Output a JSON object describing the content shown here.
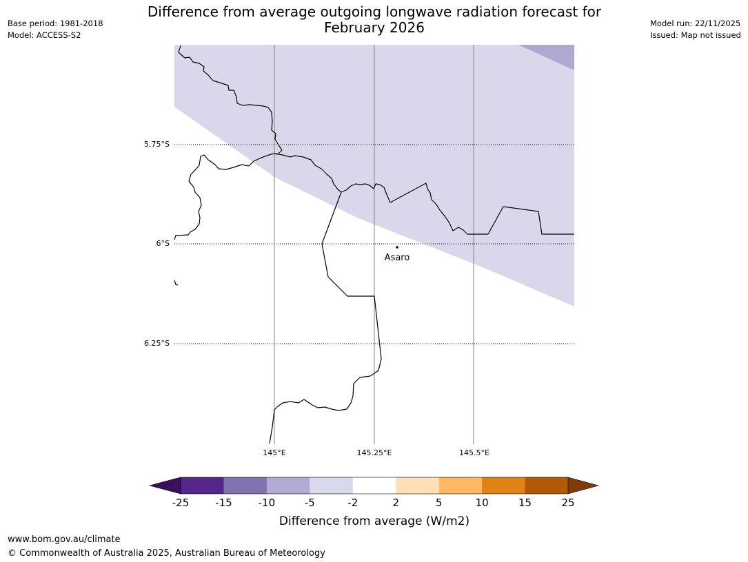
{
  "header": {
    "title_line1": "Difference from average outgoing longwave radiation forecast for",
    "title_line2": "February 2026",
    "base_period": "Base period: 1981-2018",
    "model": "Model: ACCESS-S2",
    "model_run": "Model run: 22/11/2025",
    "issued": "Issued: Map not issued"
  },
  "map": {
    "lat_labels": [
      "5.75°S",
      "6°S",
      "6.25°S"
    ],
    "lon_labels": [
      "145°E",
      "145.25°E",
      "145.5°E"
    ],
    "place_label": "Asaro",
    "colors": {
      "band_light": "#d8d8ea",
      "band_mid": "#b1a8d2",
      "coastline": "#000000",
      "gridline": "#808080"
    }
  },
  "colorbar": {
    "title": "Difference from average (W/m2)",
    "tick_labels": [
      "-25",
      "-15",
      "-10",
      "-5",
      "-2",
      "2",
      "5",
      "10",
      "15",
      "25"
    ],
    "low_extend_color": "#3b0f5c",
    "high_extend_color": "#7f3b08",
    "segment_colors": [
      "#542788",
      "#8073ac",
      "#b2abd2",
      "#d8daeb",
      "#ffffff",
      "#fee0b6",
      "#fdb863",
      "#e08214",
      "#b35806"
    ]
  },
  "footer": {
    "url": "www.bom.gov.au/climate",
    "copyright": "© Commonwealth of Australia 2025, Australian Bureau of Meteorology"
  }
}
